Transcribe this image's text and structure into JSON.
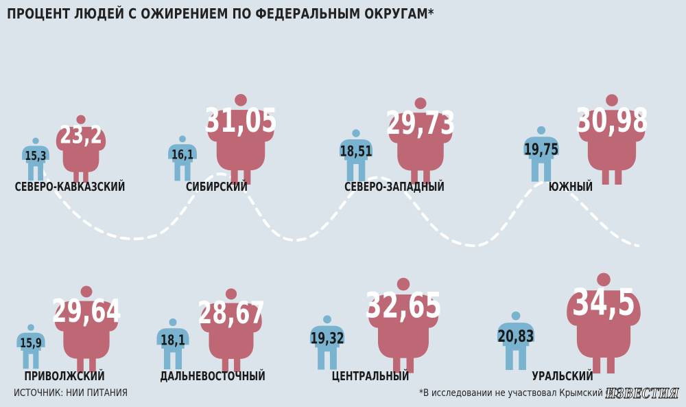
{
  "title": "ПРОЦЕНТ ЛЮДЕЙ С ОЖИРЕНИЕМ ПО ФЕДЕРАЛЬНЫМ ОКРУГАМ*",
  "source": "ИСТОЧНИК: НИИ ПИТАНИЯ",
  "footnote": "*В исследовании не участвовал Крымский ФО.",
  "logo": "ИЗВЕСТИЯ",
  "colors": {
    "background": "#dbe4ea",
    "children": "#7ab3d0",
    "adults": "#d96670",
    "overlap": "#a8697a",
    "path": "#ffffff"
  },
  "chart_data": {
    "type": "pictograph",
    "series": [
      {
        "key": "children",
        "color": "#7ab3d0"
      },
      {
        "key": "adults",
        "color": "#d96670"
      }
    ],
    "districts": [
      {
        "name": "СЕВЕРО-КАВКАЗСКИЙ",
        "children": 15.3,
        "adults": 23.2,
        "children_label": "15,3",
        "adults_label": "23,2"
      },
      {
        "name": "СИБИРСКИЙ",
        "children": 16.1,
        "adults": 31.05,
        "children_label": "16,1",
        "adults_label": "31,05"
      },
      {
        "name": "СЕВЕРО-ЗАПАДНЫЙ",
        "children": 18.51,
        "adults": 29.73,
        "children_label": "18,51",
        "adults_label": "29,73"
      },
      {
        "name": "ЮЖНЫЙ",
        "children": 19.75,
        "adults": 30.98,
        "children_label": "19,75",
        "adults_label": "30,98"
      },
      {
        "name": "ПРИВОЛЖСКИЙ",
        "children": 15.9,
        "adults": 29.64,
        "children_label": "15,9",
        "adults_label": "29,64"
      },
      {
        "name": "ДАЛЬНЕВОСТОЧНЫЙ",
        "children": 18.1,
        "adults": 28.67,
        "children_label": "18,1",
        "adults_label": "28,67"
      },
      {
        "name": "ЦЕНТРАЛЬНЫЙ",
        "children": 19.32,
        "adults": 32.65,
        "children_label": "19,32",
        "adults_label": "32,65"
      },
      {
        "name": "УРАЛЬСКИЙ",
        "children": 20.83,
        "adults": 34.5,
        "children_label": "20,83",
        "adults_label": "34,5"
      }
    ]
  }
}
